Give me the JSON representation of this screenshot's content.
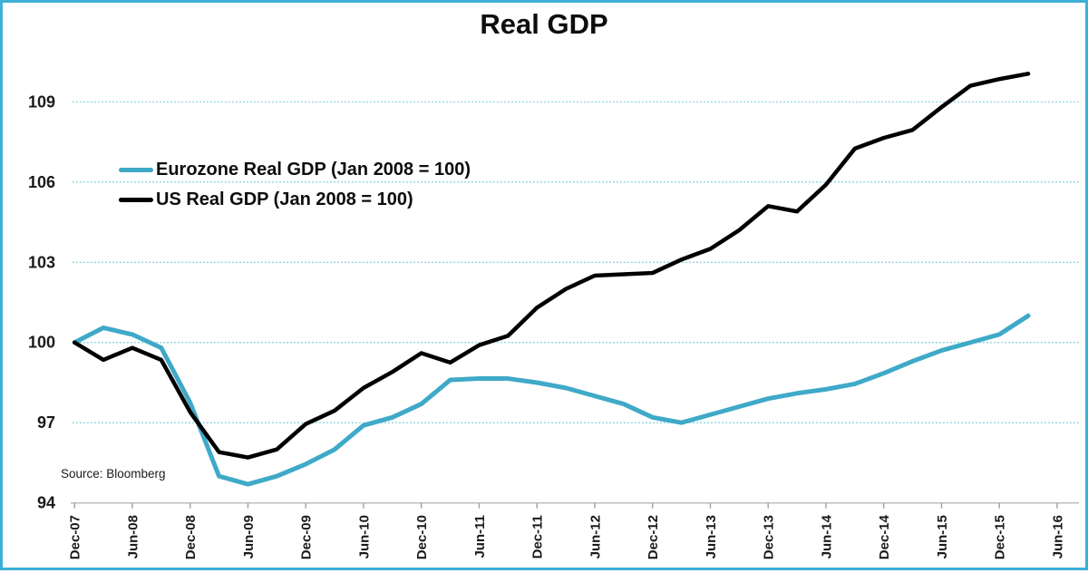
{
  "frame": {
    "border_color": "#3CB0D6",
    "background": "#FFFFFF"
  },
  "chart_data": {
    "type": "line",
    "title": "Real GDP",
    "source_note": "Source: Bloomberg",
    "legend_position": "inside-top-left",
    "x_axis": {
      "tick_labels": [
        "Dec-07",
        "Jun-08",
        "Dec-08",
        "Jun-09",
        "Dec-09",
        "Jun-10",
        "Dec-10",
        "Jun-11",
        "Dec-11",
        "Jun-12",
        "Dec-12",
        "Jun-13",
        "Dec-13",
        "Jun-14",
        "Dec-14",
        "Jun-15",
        "Dec-15",
        "Jun-16"
      ],
      "axis_color": "#BFBFBF",
      "tick_color": "#A6A6A6"
    },
    "y_axis": {
      "ticks": [
        94,
        97,
        100,
        103,
        106,
        109
      ],
      "range": [
        94,
        110.6
      ],
      "grid": "dotted-horizontal",
      "gridline_color": "#85D2E3"
    },
    "categories": [
      "Dec-07",
      "Mar-08",
      "Jun-08",
      "Sep-08",
      "Dec-08",
      "Mar-09",
      "Jun-09",
      "Sep-09",
      "Dec-09",
      "Mar-10",
      "Jun-10",
      "Sep-10",
      "Dec-10",
      "Mar-11",
      "Jun-11",
      "Sep-11",
      "Dec-11",
      "Mar-12",
      "Jun-12",
      "Sep-12",
      "Dec-12",
      "Mar-13",
      "Jun-13",
      "Sep-13",
      "Dec-13",
      "Mar-14",
      "Jun-14",
      "Sep-14",
      "Dec-14",
      "Mar-15",
      "Jun-15",
      "Sep-15",
      "Dec-15",
      "Mar-16"
    ],
    "series": [
      {
        "id": "eurozone-real-gdp",
        "name": "Eurozone Real GDP (Jan 2008 = 100)",
        "color": "#3FA9C8",
        "stroke_width": 5,
        "values": [
          100,
          100.55,
          100.3,
          99.8,
          97.75,
          95.0,
          94.7,
          95.0,
          95.45,
          96.0,
          96.9,
          97.2,
          97.7,
          98.6,
          98.65,
          98.65,
          98.5,
          98.3,
          98.0,
          97.7,
          97.2,
          97.0,
          97.3,
          97.6,
          97.9,
          98.1,
          98.25,
          98.45,
          98.85,
          99.3,
          99.7,
          100.0,
          100.3,
          101.0
        ]
      },
      {
        "id": "us-real-gdp",
        "name": "US Real GDP (Jan 2008 = 100)",
        "color": "#000000",
        "stroke_width": 4.5,
        "values": [
          100,
          99.35,
          99.8,
          99.35,
          97.4,
          95.9,
          95.7,
          96.0,
          96.95,
          97.45,
          98.3,
          98.9,
          99.6,
          99.25,
          99.9,
          100.25,
          101.3,
          102.0,
          102.5,
          102.55,
          102.6,
          103.1,
          103.5,
          104.2,
          105.1,
          104.9,
          105.9,
          107.25,
          107.65,
          107.95,
          108.8,
          109.6,
          109.85,
          110.05
        ]
      }
    ]
  }
}
